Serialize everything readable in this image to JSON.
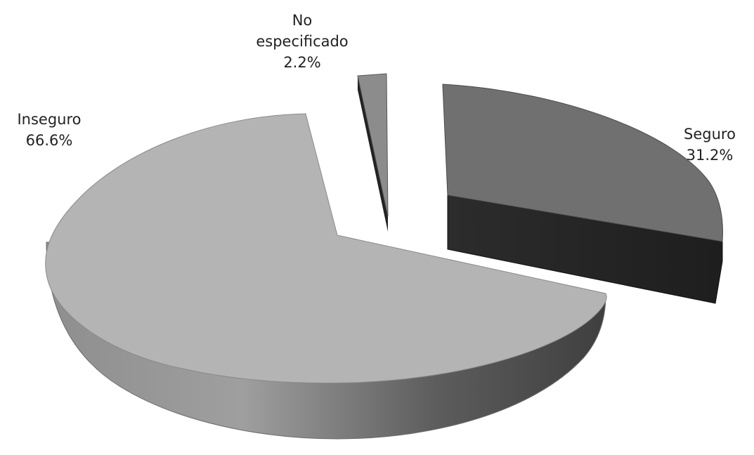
{
  "chart_data": {
    "type": "pie",
    "style": "3d-exploded",
    "slices": [
      {
        "label": "Inseguro",
        "value": 66.6,
        "value_label": "66.6%",
        "color": "#b4b4b4"
      },
      {
        "label": "No especificado",
        "value": 2.2,
        "value_label": "2.2%",
        "color": "#8c8c8c"
      },
      {
        "label": "Seguro",
        "value": 31.2,
        "value_label": "31.2%",
        "color": "#707070"
      }
    ],
    "legend": "none",
    "data_labels": "outside"
  }
}
